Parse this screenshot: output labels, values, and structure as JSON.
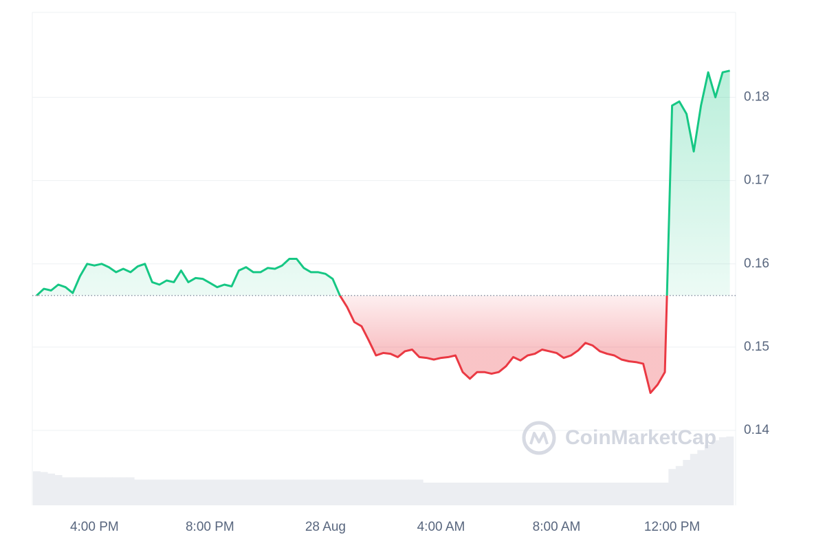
{
  "chart_data": {
    "type": "line",
    "watermark": "CoinMarketCap",
    "xlim": [
      -10.15,
      14.2
    ],
    "xticks": [
      {
        "value": -8,
        "label": "4:00 PM"
      },
      {
        "value": -4,
        "label": "8:00 PM"
      },
      {
        "value": 0,
        "label": "28 Aug"
      },
      {
        "value": 4,
        "label": "4:00 AM"
      },
      {
        "value": 8,
        "label": "8:00 AM"
      },
      {
        "value": 12,
        "label": "12:00 PM"
      }
    ],
    "ylim": [
      0.131,
      0.1902
    ],
    "yticks": [
      0.14,
      0.15,
      0.16,
      0.17,
      0.18
    ],
    "y_axis_side": "right",
    "grid": true,
    "baseline": 0.1562,
    "color_up": "#16c784",
    "color_down": "#ea3943",
    "x": [
      -10,
      -9.75,
      -9.5,
      -9.25,
      -9,
      -8.75,
      -8.5,
      -8.25,
      -8,
      -7.75,
      -7.5,
      -7.25,
      -7,
      -6.75,
      -6.5,
      -6.25,
      -6,
      -5.75,
      -5.5,
      -5.25,
      -5,
      -4.75,
      -4.5,
      -4.25,
      -4,
      -3.75,
      -3.5,
      -3.25,
      -3,
      -2.75,
      -2.5,
      -2.25,
      -2,
      -1.75,
      -1.5,
      -1.25,
      -1,
      -0.75,
      -0.5,
      -0.25,
      0,
      0.25,
      0.5,
      0.75,
      1,
      1.25,
      1.5,
      1.75,
      2,
      2.25,
      2.5,
      2.75,
      3,
      3.25,
      3.5,
      3.75,
      4,
      4.25,
      4.5,
      4.75,
      5,
      5.25,
      5.5,
      5.75,
      6,
      6.25,
      6.5,
      6.75,
      7,
      7.25,
      7.5,
      7.75,
      8,
      8.25,
      8.5,
      8.75,
      9,
      9.25,
      9.5,
      9.75,
      10,
      10.25,
      10.5,
      10.75,
      11,
      11.25,
      11.5,
      11.75,
      12,
      12.25,
      12.5,
      12.75,
      13,
      13.25,
      13.5,
      13.75,
      14
    ],
    "values": [
      0.1562,
      0.157,
      0.1568,
      0.1575,
      0.1572,
      0.1565,
      0.1585,
      0.16,
      0.1598,
      0.16,
      0.1596,
      0.159,
      0.1594,
      0.159,
      0.1597,
      0.16,
      0.1578,
      0.1575,
      0.158,
      0.1578,
      0.1592,
      0.1578,
      0.1583,
      0.1582,
      0.1577,
      0.1572,
      0.1575,
      0.1573,
      0.1592,
      0.1596,
      0.159,
      0.159,
      0.1595,
      0.1594,
      0.1598,
      0.1606,
      0.1606,
      0.1595,
      0.159,
      0.159,
      0.1588,
      0.1582,
      0.1562,
      0.1548,
      0.153,
      0.1525,
      0.1508,
      0.149,
      0.1493,
      0.1492,
      0.1488,
      0.1495,
      0.1497,
      0.1488,
      0.1487,
      0.1485,
      0.1487,
      0.1488,
      0.149,
      0.147,
      0.1462,
      0.147,
      0.147,
      0.1468,
      0.147,
      0.1477,
      0.1488,
      0.1484,
      0.149,
      0.1492,
      0.1497,
      0.1495,
      0.1493,
      0.1487,
      0.149,
      0.1496,
      0.1505,
      0.1502,
      0.1495,
      0.1492,
      0.149,
      0.1485,
      0.1483,
      0.1482,
      0.148,
      0.1445,
      0.1455,
      0.147,
      0.179,
      0.1795,
      0.178,
      0.1735,
      0.179,
      0.183,
      0.18,
      0.183,
      0.1832
    ],
    "volume": {
      "color": "#eceef2",
      "max": 100,
      "values": [
        45,
        44,
        42,
        40,
        37,
        37,
        37,
        37,
        37,
        37,
        37,
        37,
        37,
        37,
        34,
        34,
        34,
        34,
        34,
        34,
        34,
        34,
        34,
        34,
        34,
        34,
        34,
        34,
        34,
        34,
        34,
        34,
        34,
        34,
        34,
        34,
        34,
        34,
        34,
        34,
        34,
        34,
        34,
        34,
        34,
        34,
        34,
        34,
        34,
        34,
        34,
        34,
        34,
        34,
        30,
        30,
        30,
        30,
        30,
        30,
        30,
        30,
        30,
        30,
        30,
        30,
        30,
        30,
        30,
        30,
        30,
        30,
        30,
        30,
        30,
        30,
        30,
        30,
        30,
        30,
        30,
        30,
        30,
        30,
        30,
        30,
        30,
        30,
        48,
        52,
        60,
        68,
        73,
        80,
        86,
        90,
        91
      ]
    }
  }
}
